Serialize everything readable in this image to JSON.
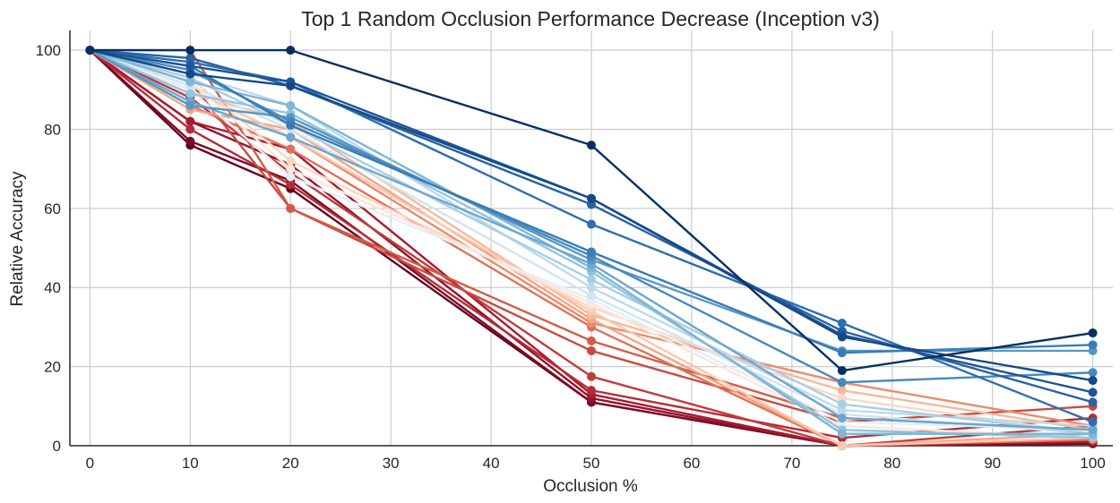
{
  "chart_data": {
    "type": "line",
    "title": "Top 1 Random Occlusion Performance Decrease (Inception v3)",
    "xlabel": "Occlusion %",
    "ylabel": "Relative Accuracy",
    "x": [
      0,
      10,
      20,
      50,
      75,
      100
    ],
    "xlim": [
      -2,
      102
    ],
    "ylim": [
      0,
      105
    ],
    "xticks": [
      0,
      10,
      20,
      30,
      40,
      50,
      60,
      70,
      80,
      90,
      100
    ],
    "yticks": [
      0,
      20,
      40,
      60,
      80,
      100
    ],
    "grid": true,
    "legend": "none",
    "series": [
      {
        "color": "#67001f",
        "values": [
          100,
          76,
          65,
          11,
          0,
          1
        ]
      },
      {
        "color": "#7d0a25",
        "values": [
          100,
          77,
          67,
          11,
          0,
          0.5
        ]
      },
      {
        "color": "#93142b",
        "values": [
          100,
          82,
          71,
          12,
          0,
          1
        ]
      },
      {
        "color": "#a61b30",
        "values": [
          100,
          82,
          75,
          13,
          0,
          1
        ]
      },
      {
        "color": "#b42d36",
        "values": [
          100,
          80,
          66,
          14,
          2,
          7
        ]
      },
      {
        "color": "#bf3c3c",
        "values": [
          100,
          88,
          69,
          17.5,
          0,
          5
        ]
      },
      {
        "color": "#c84a40",
        "values": [
          100,
          92,
          60,
          24,
          6,
          10
        ]
      },
      {
        "color": "#d25c4a",
        "values": [
          100,
          100,
          60,
          26.5,
          7,
          4
        ]
      },
      {
        "color": "#e07158",
        "values": [
          100,
          86,
          75,
          30,
          0,
          1.5
        ]
      },
      {
        "color": "#ec8a6c",
        "values": [
          100,
          90,
          78,
          31,
          16,
          5
        ]
      },
      {
        "color": "#f4a582",
        "values": [
          100,
          85,
          80,
          32,
          0,
          3
        ]
      },
      {
        "color": "#f7b89b",
        "values": [
          100,
          89,
          82,
          33,
          14,
          4
        ]
      },
      {
        "color": "#fac8b0",
        "values": [
          100,
          90,
          78,
          34,
          0,
          2
        ]
      },
      {
        "color": "#fbd7c6",
        "values": [
          100,
          93,
          72,
          35,
          12,
          3
        ]
      },
      {
        "color": "#fce6da",
        "values": [
          100,
          92,
          70,
          36,
          5,
          2
        ]
      },
      {
        "color": "#e6eef4",
        "values": [
          100,
          90,
          68,
          37,
          6,
          4
        ]
      },
      {
        "color": "#d1e5f0",
        "values": [
          100,
          91,
          80,
          38,
          8,
          3
        ]
      },
      {
        "color": "#bcdaea",
        "values": [
          100,
          94,
          86,
          40,
          9,
          5
        ]
      },
      {
        "color": "#a7cfe4",
        "values": [
          100,
          93,
          81,
          42,
          10.5,
          3
        ]
      },
      {
        "color": "#92c5de",
        "values": [
          100,
          89,
          84,
          44,
          4,
          2
        ]
      },
      {
        "color": "#7fb6d6",
        "values": [
          100,
          92,
          86,
          45,
          3,
          3
        ]
      },
      {
        "color": "#6ba7ce",
        "values": [
          100,
          87,
          78,
          46,
          7,
          4
        ]
      },
      {
        "color": "#5898c5",
        "values": [
          100,
          86,
          83,
          47,
          24,
          24
        ]
      },
      {
        "color": "#4689bd",
        "values": [
          100,
          95,
          82,
          48,
          16,
          18.5
        ]
      },
      {
        "color": "#3a7cb6",
        "values": [
          100,
          96,
          81,
          49,
          23.5,
          25.5
        ]
      },
      {
        "color": "#2e6fae",
        "values": [
          100,
          97,
          92,
          56,
          31,
          6
        ]
      },
      {
        "color": "#2862a3",
        "values": [
          100,
          98,
          91,
          61,
          29,
          11
        ]
      },
      {
        "color": "#1e5597",
        "values": [
          100,
          96,
          92,
          62.5,
          28,
          13.5
        ]
      },
      {
        "color": "#144a89",
        "values": [
          100,
          94,
          91,
          62.5,
          27.5,
          16.5
        ]
      },
      {
        "color": "#053061",
        "values": [
          100,
          100,
          100,
          76,
          19,
          28.5
        ]
      }
    ]
  }
}
